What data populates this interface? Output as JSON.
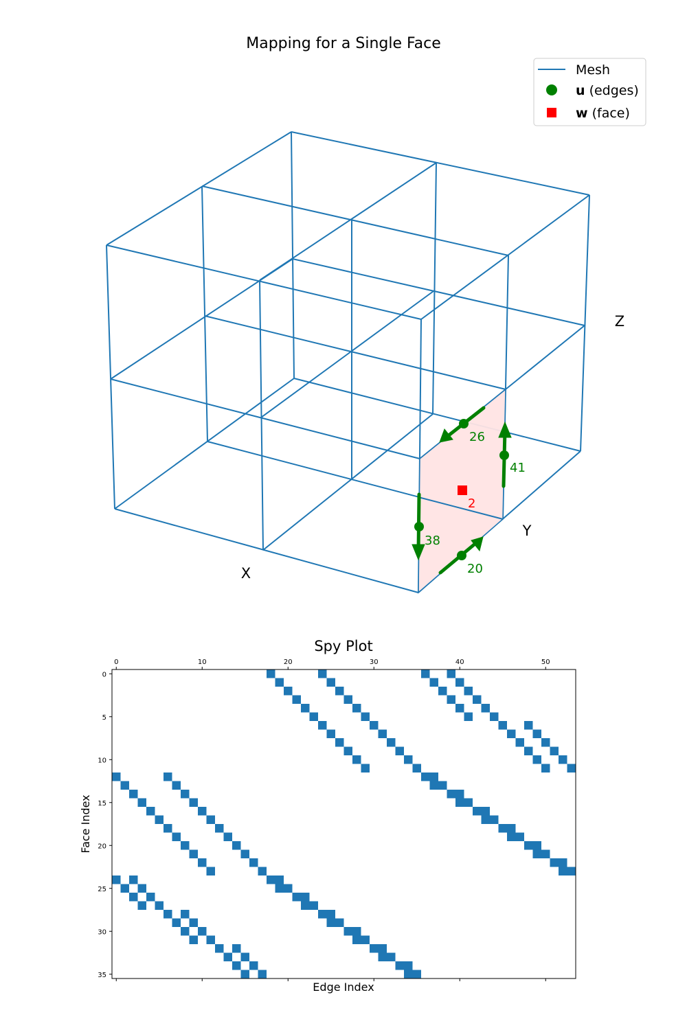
{
  "chart_data": [
    {
      "type": "3d-wireframe",
      "title": "Mapping for a Single Face",
      "xlabel": "X",
      "ylabel": "Y",
      "zlabel": "Z",
      "mesh_shape": [
        2,
        2,
        2
      ],
      "legend": {
        "placement": "top-right",
        "entries": [
          {
            "key": "mesh",
            "marker": "line",
            "color": "#1f77b4",
            "bold": "",
            "text": "Mesh"
          },
          {
            "key": "u",
            "marker": "circle",
            "color": "#008000",
            "bold": "u",
            "text": " (edges)"
          },
          {
            "key": "w",
            "marker": "square",
            "color": "#ff0000",
            "bold": "w",
            "text": " (face)"
          }
        ]
      },
      "face": {
        "label": "2",
        "color": "#ff0000",
        "fill": "#ffe4e4"
      },
      "edges": [
        {
          "label": "26",
          "direction": "negative"
        },
        {
          "label": "41",
          "direction": "positive"
        },
        {
          "label": "38",
          "direction": "negative"
        },
        {
          "label": "20",
          "direction": "positive"
        }
      ],
      "colors": {
        "mesh": "#1f77b4",
        "edge": "#008000",
        "face": "#ff0000"
      }
    },
    {
      "type": "heatmap",
      "subtype": "spy",
      "title": "Spy Plot",
      "xlabel": "Edge Index",
      "ylabel": "Face Index",
      "x_ticks": [
        0,
        10,
        20,
        30,
        40,
        50
      ],
      "y_ticks": [
        0,
        5,
        10,
        15,
        20,
        25,
        30,
        35
      ],
      "xlim": [
        -0.5,
        53.5
      ],
      "ylim": [
        35.5,
        -0.5
      ],
      "marker_color": "#1f77b4",
      "nonzeros": [
        [
          0,
          18
        ],
        [
          0,
          24
        ],
        [
          0,
          36
        ],
        [
          0,
          39
        ],
        [
          1,
          19
        ],
        [
          1,
          25
        ],
        [
          1,
          37
        ],
        [
          1,
          40
        ],
        [
          2,
          20
        ],
        [
          2,
          26
        ],
        [
          2,
          38
        ],
        [
          2,
          41
        ],
        [
          3,
          21
        ],
        [
          3,
          27
        ],
        [
          3,
          39
        ],
        [
          3,
          42
        ],
        [
          4,
          22
        ],
        [
          4,
          28
        ],
        [
          4,
          40
        ],
        [
          4,
          43
        ],
        [
          5,
          23
        ],
        [
          5,
          29
        ],
        [
          5,
          41
        ],
        [
          5,
          44
        ],
        [
          6,
          24
        ],
        [
          6,
          30
        ],
        [
          6,
          45
        ],
        [
          6,
          48
        ],
        [
          7,
          25
        ],
        [
          7,
          31
        ],
        [
          7,
          46
        ],
        [
          7,
          49
        ],
        [
          8,
          26
        ],
        [
          8,
          32
        ],
        [
          8,
          47
        ],
        [
          8,
          50
        ],
        [
          9,
          27
        ],
        [
          9,
          33
        ],
        [
          9,
          48
        ],
        [
          9,
          51
        ],
        [
          10,
          28
        ],
        [
          10,
          34
        ],
        [
          10,
          49
        ],
        [
          10,
          52
        ],
        [
          11,
          29
        ],
        [
          11,
          35
        ],
        [
          11,
          50
        ],
        [
          11,
          53
        ],
        [
          12,
          0
        ],
        [
          12,
          6
        ],
        [
          12,
          36
        ],
        [
          12,
          37
        ],
        [
          13,
          1
        ],
        [
          13,
          7
        ],
        [
          13,
          37
        ],
        [
          13,
          38
        ],
        [
          14,
          2
        ],
        [
          14,
          8
        ],
        [
          14,
          39
        ],
        [
          14,
          40
        ],
        [
          15,
          3
        ],
        [
          15,
          9
        ],
        [
          15,
          40
        ],
        [
          15,
          41
        ],
        [
          16,
          4
        ],
        [
          16,
          10
        ],
        [
          16,
          42
        ],
        [
          16,
          43
        ],
        [
          17,
          5
        ],
        [
          17,
          11
        ],
        [
          17,
          43
        ],
        [
          17,
          44
        ],
        [
          18,
          6
        ],
        [
          18,
          12
        ],
        [
          18,
          45
        ],
        [
          18,
          46
        ],
        [
          19,
          7
        ],
        [
          19,
          13
        ],
        [
          19,
          46
        ],
        [
          19,
          47
        ],
        [
          20,
          8
        ],
        [
          20,
          14
        ],
        [
          20,
          48
        ],
        [
          20,
          49
        ],
        [
          21,
          9
        ],
        [
          21,
          15
        ],
        [
          21,
          49
        ],
        [
          21,
          50
        ],
        [
          22,
          10
        ],
        [
          22,
          16
        ],
        [
          22,
          51
        ],
        [
          22,
          52
        ],
        [
          23,
          11
        ],
        [
          23,
          17
        ],
        [
          23,
          52
        ],
        [
          23,
          53
        ],
        [
          24,
          0
        ],
        [
          24,
          2
        ],
        [
          24,
          18
        ],
        [
          24,
          19
        ],
        [
          25,
          1
        ],
        [
          25,
          3
        ],
        [
          25,
          19
        ],
        [
          25,
          20
        ],
        [
          26,
          2
        ],
        [
          26,
          4
        ],
        [
          26,
          21
        ],
        [
          26,
          22
        ],
        [
          27,
          3
        ],
        [
          27,
          5
        ],
        [
          27,
          22
        ],
        [
          27,
          23
        ],
        [
          28,
          6
        ],
        [
          28,
          8
        ],
        [
          28,
          24
        ],
        [
          28,
          25
        ],
        [
          29,
          7
        ],
        [
          29,
          9
        ],
        [
          29,
          25
        ],
        [
          29,
          26
        ],
        [
          30,
          8
        ],
        [
          30,
          10
        ],
        [
          30,
          27
        ],
        [
          30,
          28
        ],
        [
          31,
          9
        ],
        [
          31,
          11
        ],
        [
          31,
          28
        ],
        [
          31,
          29
        ],
        [
          32,
          12
        ],
        [
          32,
          14
        ],
        [
          32,
          30
        ],
        [
          32,
          31
        ],
        [
          33,
          13
        ],
        [
          33,
          15
        ],
        [
          33,
          31
        ],
        [
          33,
          32
        ],
        [
          34,
          14
        ],
        [
          34,
          16
        ],
        [
          34,
          33
        ],
        [
          34,
          34
        ],
        [
          35,
          15
        ],
        [
          35,
          17
        ],
        [
          35,
          34
        ],
        [
          35,
          35
        ]
      ]
    }
  ]
}
